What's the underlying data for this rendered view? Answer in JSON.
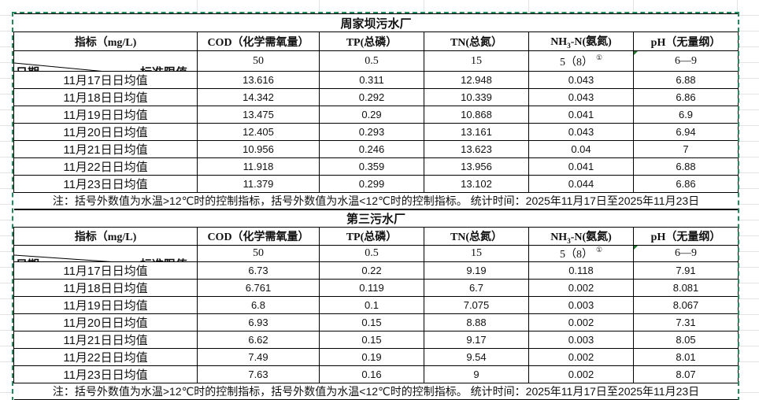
{
  "colors": {
    "selection_border": "#1f8a5a",
    "comment_marker": "#1a7a2a"
  },
  "tables": [
    {
      "title": "周家坝污水厂",
      "headers": {
        "indicator": "指标（mg/L)",
        "cod": "COD（化学需氧量）",
        "tp": "TP(总磷）",
        "tn": "TN(总氮）",
        "nh3_pre": "NH",
        "nh3_sub": "3",
        "nh3_post": "-N(氨氮)",
        "ph": "pH（无量纲）"
      },
      "limits": {
        "date_label": "日期",
        "limit_label": "标准限值",
        "cod": "50",
        "tp": "0.5",
        "tn": "15",
        "nh3": "5（8）",
        "nh3_note": "①",
        "ph": "6—9"
      },
      "rows": [
        {
          "date": "11月17日日均值",
          "cod": "13.616",
          "tp": "0.311",
          "tn": "12.948",
          "nh3": "0.043",
          "ph": "6.88"
        },
        {
          "date": "11月18日日均值",
          "cod": "14.342",
          "tp": "0.292",
          "tn": "10.339",
          "nh3": "0.043",
          "ph": "6.86"
        },
        {
          "date": "11月19日日均值",
          "cod": "13.475",
          "tp": "0.29",
          "tn": "10.868",
          "nh3": "0.041",
          "ph": "6.9"
        },
        {
          "date": "11月20日日均值",
          "cod": "12.405",
          "tp": "0.293",
          "tn": "13.161",
          "nh3": "0.043",
          "ph": "6.94"
        },
        {
          "date": "11月21日日均值",
          "cod": "10.956",
          "tp": "0.246",
          "tn": "13.623",
          "nh3": "0.04",
          "ph": "7"
        },
        {
          "date": "11月22日日均值",
          "cod": "11.918",
          "tp": "0.359",
          "tn": "13.956",
          "nh3": "0.041",
          "ph": "6.88"
        },
        {
          "date": "11月23日日均值",
          "cod": "11.379",
          "tp": "0.299",
          "tn": "13.102",
          "nh3": "0.044",
          "ph": "6.86"
        }
      ],
      "note": "注：括号外数值为水温>12℃时的控制指标，括号外数值为水温<12℃时的控制指标。   统计时间：2025年11月17日至2025年11月23日"
    },
    {
      "title": "第三污水厂",
      "headers": {
        "indicator": "指标（mg/L)",
        "cod": "COD（化学需氧量）",
        "tp": "TP(总磷）",
        "tn": "TN(总氮）",
        "nh3_pre": "NH",
        "nh3_sub": "3",
        "nh3_post": "-N(氨氮)",
        "ph": "pH（无量纲）"
      },
      "limits": {
        "date_label": "日期",
        "limit_label": "标准限值",
        "cod": "50",
        "tp": "0.5",
        "tn": "15",
        "nh3": "5（8）",
        "nh3_note": "①",
        "ph": "6—9"
      },
      "rows": [
        {
          "date": "11月17日日均值",
          "cod": "6.73",
          "tp": "0.22",
          "tn": "9.19",
          "nh3": "0.118",
          "ph": "7.91"
        },
        {
          "date": "11月18日日均值",
          "cod": "6.761",
          "tp": "0.119",
          "tn": "6.7",
          "nh3": "0.002",
          "ph": "8.081"
        },
        {
          "date": "11月19日日均值",
          "cod": "6.8",
          "tp": "0.1",
          "tn": "7.075",
          "nh3": "0.003",
          "ph": "8.067"
        },
        {
          "date": "11月20日日均值",
          "cod": "6.93",
          "tp": "0.15",
          "tn": "8.88",
          "nh3": "0.002",
          "ph": "7.31"
        },
        {
          "date": "11月21日日均值",
          "cod": "6.62",
          "tp": "0.15",
          "tn": "9.17",
          "nh3": "0.003",
          "ph": "8.05"
        },
        {
          "date": "11月22日日均值",
          "cod": "7.49",
          "tp": "0.19",
          "tn": "9.54",
          "nh3": "0.002",
          "ph": "8.01"
        },
        {
          "date": "11月23日日均值",
          "cod": "7.63",
          "tp": "0.16",
          "tn": "9",
          "nh3": "0.002",
          "ph": "8.07"
        }
      ],
      "note": "注：括号外数值为水温>12℃时的控制指标，括号外数值为水温<12℃时的控制指标。 统计时间：2025年11月17日至2025年11月23日"
    }
  ]
}
